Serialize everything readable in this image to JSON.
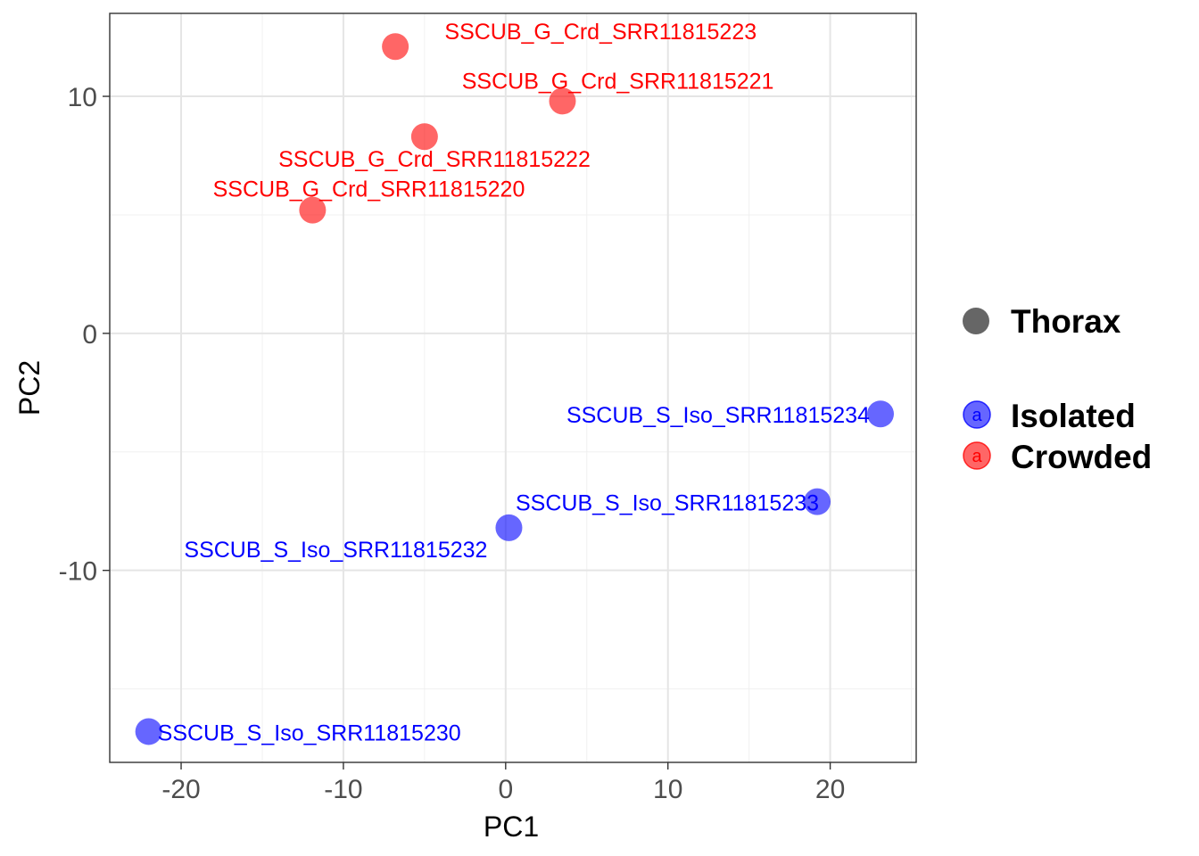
{
  "chart_data": {
    "type": "scatter",
    "xlabel": "PC1",
    "ylabel": "PC2",
    "xlim": [
      -24.4,
      25.3
    ],
    "ylim": [
      -18.1,
      13.5
    ],
    "xticks": [
      -20,
      -10,
      0,
      10,
      20
    ],
    "yticks": [
      -10,
      0,
      10
    ],
    "x_tick_labels": [
      "-20",
      "-10",
      "0",
      "10",
      "20"
    ],
    "y_tick_labels": [
      "-10",
      "0",
      "10"
    ],
    "grid": true,
    "legend": {
      "position": "right",
      "shape_label": "Thorax",
      "shape_color": "#666666",
      "key_letter": "a",
      "entries": [
        {
          "name": "Isolated",
          "color": "#0000ff"
        },
        {
          "name": "Crowded",
          "color": "#ff0000"
        }
      ]
    },
    "series": [
      {
        "name": "Isolated",
        "color": "#0000ff",
        "points": [
          {
            "x": -22.0,
            "y": -16.8,
            "label": "SSCUB_S_Iso_SRR11815230"
          },
          {
            "x": 0.2,
            "y": -8.2,
            "label": "SSCUB_S_Iso_SRR11815232"
          },
          {
            "x": 19.2,
            "y": -7.1,
            "label": "SSCUB_S_Iso_SRR11815233"
          },
          {
            "x": 23.1,
            "y": -3.4,
            "label": "SSCUB_S_Iso_SRR11815234"
          }
        ]
      },
      {
        "name": "Crowded",
        "color": "#ff0000",
        "points": [
          {
            "x": -11.9,
            "y": 5.2,
            "label": "SSCUB_G_Crd_SRR11815220"
          },
          {
            "x": 3.5,
            "y": 9.8,
            "label": "SSCUB_G_Crd_SRR11815221"
          },
          {
            "x": -5.0,
            "y": 8.3,
            "label": "SSCUB_G_Crd_SRR11815222"
          },
          {
            "x": -6.8,
            "y": 12.1,
            "label": "SSCUB_G_Crd_SRR11815223"
          }
        ]
      }
    ]
  }
}
